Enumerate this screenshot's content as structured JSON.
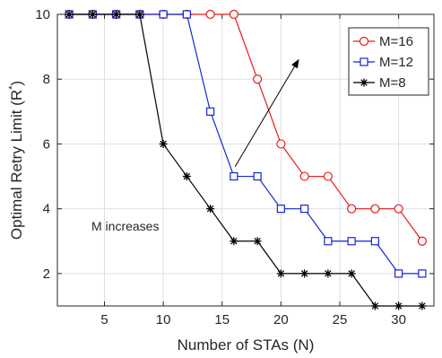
{
  "chart_data": {
    "type": "line",
    "title": "",
    "xlabel": "Number of STAs (N)",
    "ylabel": "Optimal Retry Limit (R",
    "ylabel_sup": "*",
    "ylabel_close": ")",
    "xlim": [
      1,
      33
    ],
    "ylim": [
      1,
      10
    ],
    "xticks": [
      5,
      10,
      15,
      20,
      25,
      30
    ],
    "yticks": [
      2,
      4,
      6,
      8,
      10
    ],
    "grid": true,
    "legend_position": "top-right",
    "x": [
      2,
      4,
      6,
      8,
      10,
      12,
      14,
      16,
      18,
      20,
      22,
      24,
      26,
      28,
      30,
      32
    ],
    "series": [
      {
        "name": "M=16",
        "color": "#e8191b",
        "marker": "circle",
        "values": [
          10,
          10,
          10,
          10,
          10,
          10,
          10,
          10,
          8,
          6,
          5,
          5,
          4,
          4,
          4,
          3
        ]
      },
      {
        "name": "M=12",
        "color": "#1326d8",
        "marker": "square",
        "values": [
          10,
          10,
          10,
          10,
          10,
          10,
          7,
          5,
          5,
          4,
          4,
          3,
          3,
          3,
          2,
          2
        ]
      },
      {
        "name": "M=8",
        "color": "#000000",
        "marker": "asterisk",
        "values": [
          10,
          10,
          10,
          10,
          6,
          5,
          4,
          3,
          3,
          2,
          2,
          2,
          2,
          1,
          1,
          1
        ]
      }
    ],
    "annotation": {
      "text": "M increases",
      "arrow_from": [
        16.1,
        5.3
      ],
      "arrow_to": [
        21.5,
        8.6
      ]
    }
  }
}
